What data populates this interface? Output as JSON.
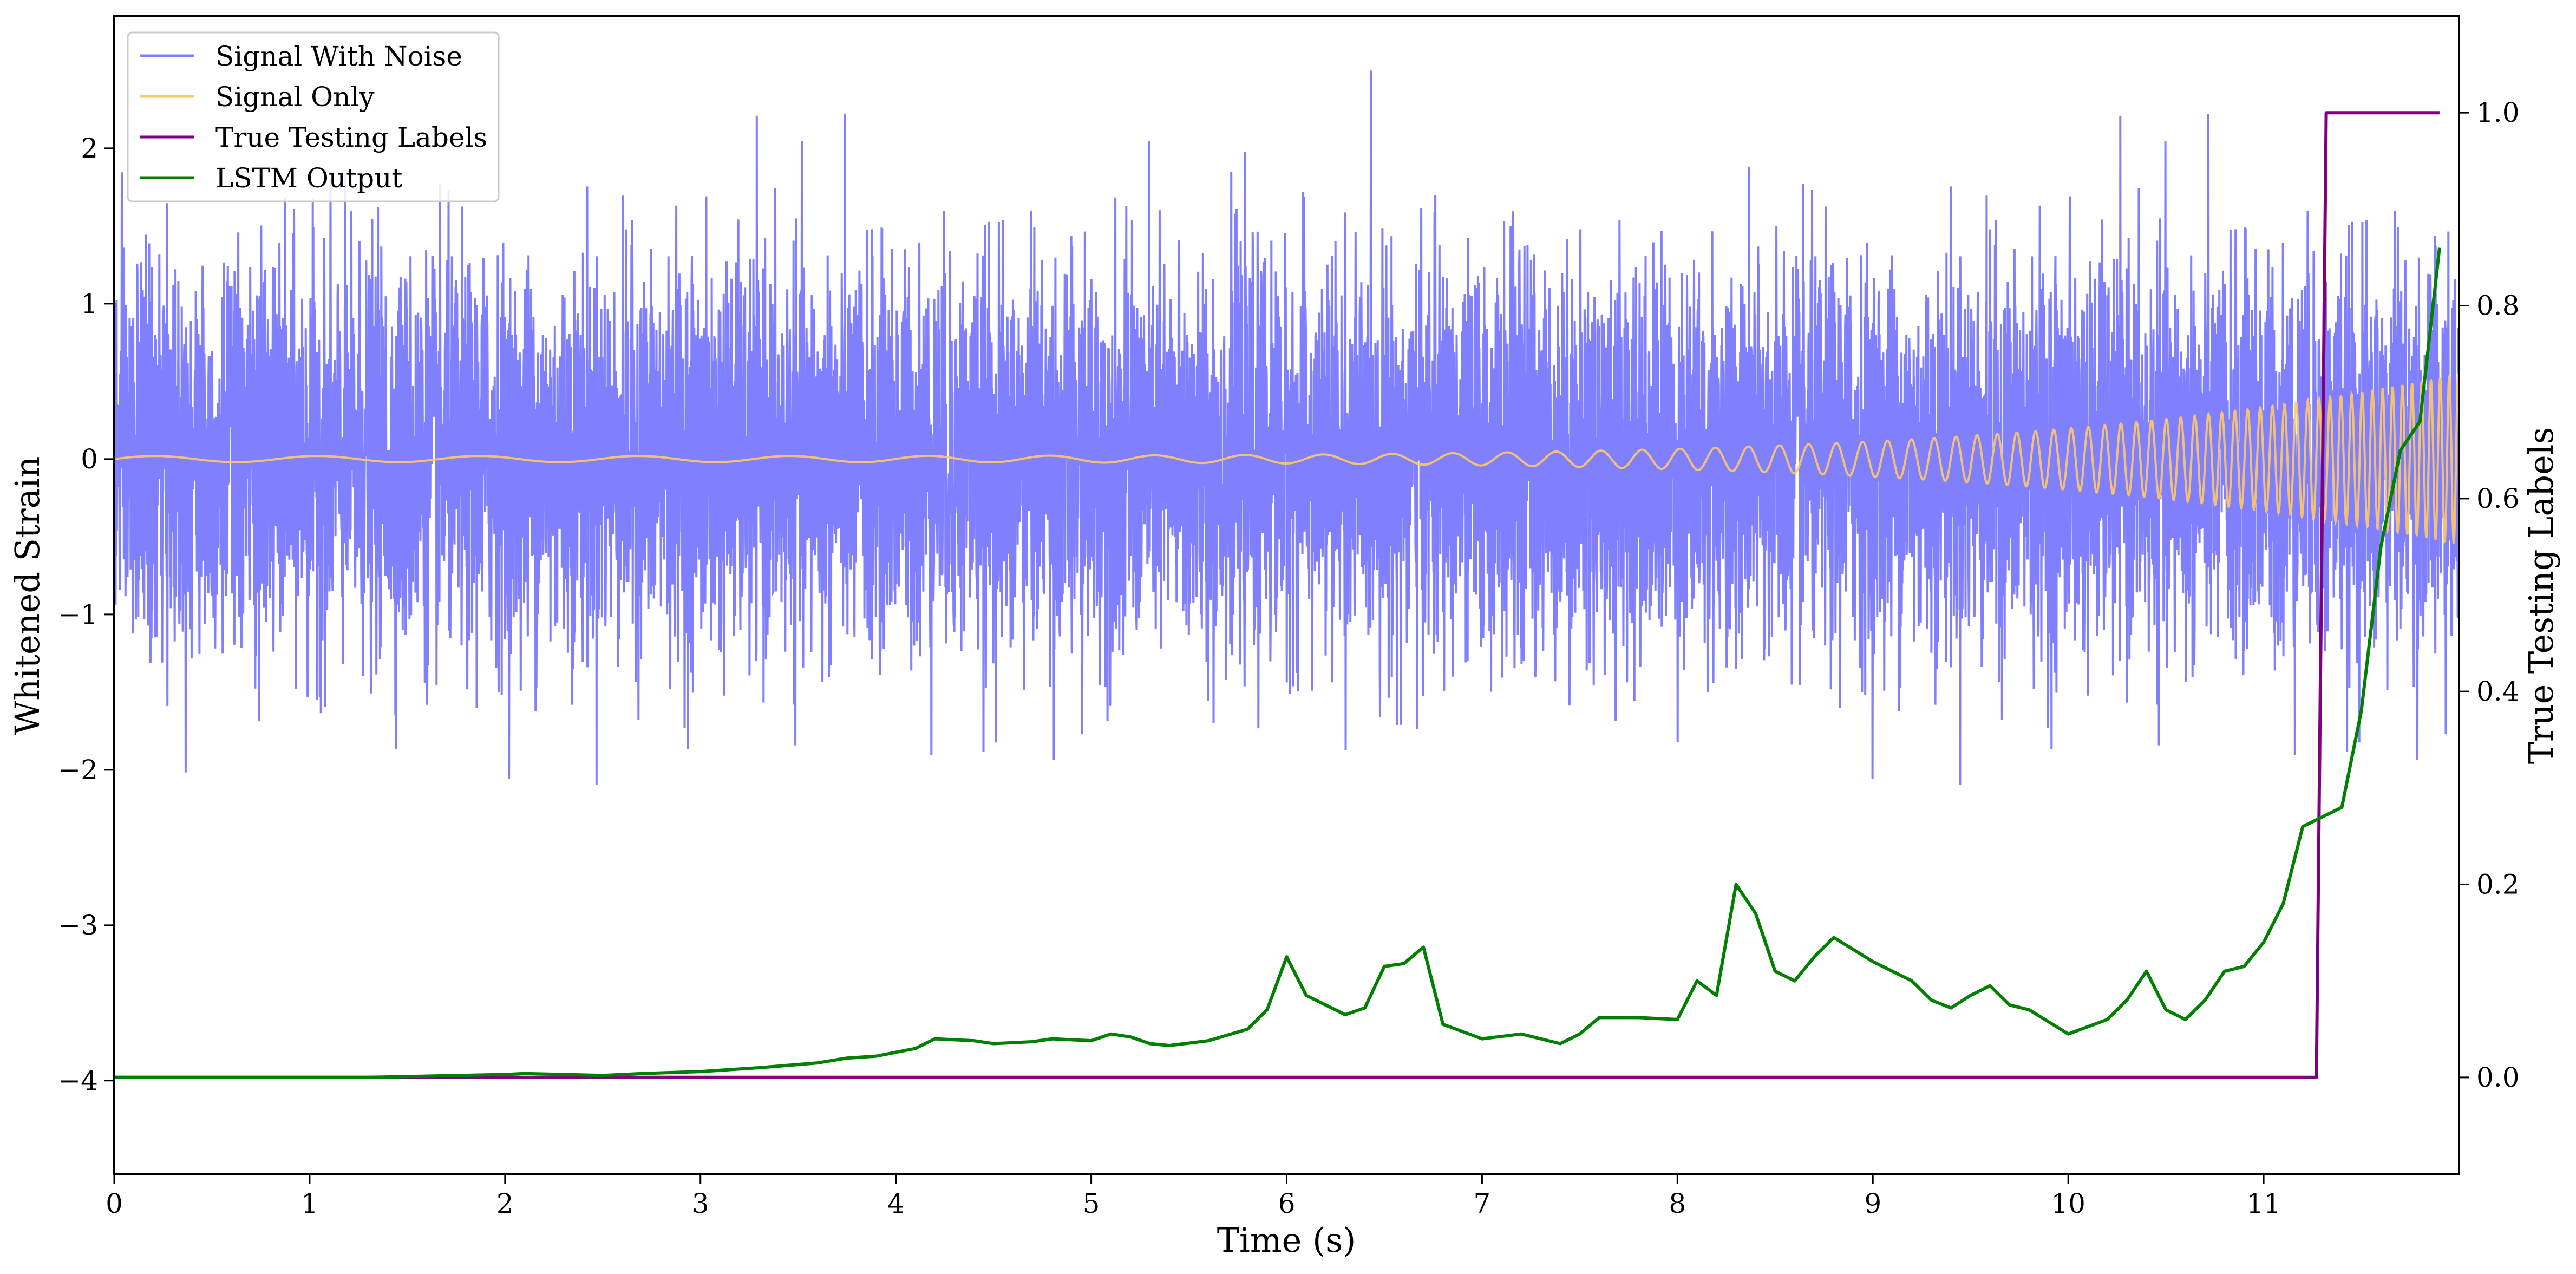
{
  "chart_data": {
    "type": "line",
    "xlabel": "Time (s)",
    "ylabel": "Whitened Strain",
    "y2label": "True Testing Labels",
    "xlim": [
      0,
      12.0
    ],
    "ylim": [
      -4.6,
      2.85
    ],
    "y2lim": [
      -0.1,
      1.1
    ],
    "xticks": [
      0,
      1,
      2,
      3,
      4,
      5,
      6,
      7,
      8,
      9,
      10,
      11
    ],
    "yticks": [
      -4,
      -3,
      -2,
      -1,
      0,
      1,
      2
    ],
    "y2ticks": [
      0.0,
      0.2,
      0.4,
      0.6,
      0.8,
      1.0
    ],
    "xtick_labels": [
      "0",
      "1",
      "2",
      "3",
      "4",
      "5",
      "6",
      "7",
      "8",
      "9",
      "10",
      "11"
    ],
    "ytick_labels": [
      "−4",
      "−3",
      "−2",
      "−1",
      "0",
      "1",
      "2"
    ],
    "y2tick_labels": [
      "0.0",
      "0.2",
      "0.4",
      "0.6",
      "0.8",
      "1.0"
    ],
    "grid": false,
    "legend_position": "top-left",
    "series": [
      {
        "name": "Signal With Noise",
        "axis": "left",
        "color": "#8080ff",
        "description": "dense noisy whitened strain, amplitude roughly -2.4 to 2.5",
        "noise_amplitude": 0.62,
        "max_peak": 2.5,
        "min_peak": -2.37
      },
      {
        "name": "Signal Only",
        "axis": "left",
        "color": "#ffc864",
        "description": "chirp signal oscillating around 0 with growing amplitude",
        "amplitude_start": 0.02,
        "amplitude_end": 0.55,
        "frequency_start": 1.2,
        "frequency_end": 22
      },
      {
        "name": "True Testing Labels",
        "axis": "right",
        "color": "#800080",
        "x": [
          0,
          11.27,
          11.32,
          11.9
        ],
        "y": [
          0.0,
          0.0,
          1.0,
          1.0
        ]
      },
      {
        "name": "LSTM Output",
        "axis": "right",
        "color": "#008000",
        "x": [
          0,
          1.3,
          2.0,
          2.1,
          2.5,
          2.7,
          3.0,
          3.3,
          3.6,
          3.75,
          3.9,
          4.1,
          4.2,
          4.4,
          4.5,
          4.7,
          4.8,
          5.0,
          5.1,
          5.2,
          5.3,
          5.4,
          5.6,
          5.8,
          5.9,
          6.0,
          6.1,
          6.3,
          6.4,
          6.5,
          6.6,
          6.7,
          6.8,
          7.0,
          7.2,
          7.4,
          7.5,
          7.6,
          7.8,
          8.0,
          8.1,
          8.2,
          8.3,
          8.4,
          8.5,
          8.6,
          8.7,
          8.8,
          9.0,
          9.2,
          9.3,
          9.4,
          9.5,
          9.6,
          9.7,
          9.8,
          10.0,
          10.2,
          10.3,
          10.4,
          10.5,
          10.6,
          10.7,
          10.8,
          10.9,
          11.0,
          11.1,
          11.15,
          11.2,
          11.3,
          11.4,
          11.5,
          11.6,
          11.7,
          11.8,
          11.85,
          11.9
        ],
        "y": [
          0.0,
          0.0,
          0.003,
          0.004,
          0.002,
          0.004,
          0.006,
          0.01,
          0.015,
          0.02,
          0.022,
          0.03,
          0.04,
          0.038,
          0.035,
          0.037,
          0.04,
          0.038,
          0.045,
          0.042,
          0.035,
          0.033,
          0.038,
          0.05,
          0.07,
          0.125,
          0.085,
          0.065,
          0.072,
          0.115,
          0.118,
          0.135,
          0.055,
          0.04,
          0.045,
          0.035,
          0.045,
          0.062,
          0.062,
          0.06,
          0.1,
          0.085,
          0.2,
          0.17,
          0.11,
          0.1,
          0.125,
          0.145,
          0.12,
          0.1,
          0.08,
          0.072,
          0.085,
          0.095,
          0.075,
          0.07,
          0.045,
          0.06,
          0.08,
          0.11,
          0.07,
          0.06,
          0.08,
          0.11,
          0.115,
          0.14,
          0.18,
          0.22,
          0.26,
          0.27,
          0.28,
          0.38,
          0.55,
          0.65,
          0.68,
          0.77,
          0.86
        ]
      }
    ]
  }
}
